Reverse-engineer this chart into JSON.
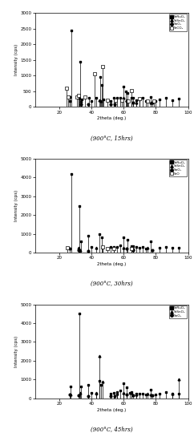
{
  "subplots": [
    {
      "title": "(900°C, 15hrs)",
      "ylabel": "Intensity (cps)",
      "xlabel": "2theta (deg.)",
      "ylim": [
        0,
        3000
      ],
      "yticks": [
        0,
        500,
        1000,
        1500,
        2000,
        2500,
        3000
      ],
      "xlim": [
        5,
        100
      ],
      "xticks": [
        20,
        40,
        60,
        80,
        100
      ],
      "legend": [
        "SrRuO₃",
        "SrSnO₃",
        "SnO₂",
        "SrCO₃"
      ],
      "legend_markers": [
        "filled_square",
        "filled_triangle",
        "filled_circle",
        "open_square"
      ],
      "peaks": {
        "SrRuO3": [
          [
            26.5,
            200
          ],
          [
            27.5,
            2450
          ],
          [
            32,
            300
          ],
          [
            33,
            1450
          ],
          [
            34,
            250
          ],
          [
            38.5,
            300
          ],
          [
            40,
            200
          ],
          [
            43,
            300
          ],
          [
            45.5,
            950
          ],
          [
            46.5,
            700
          ],
          [
            47.5,
            250
          ],
          [
            52,
            200
          ],
          [
            54,
            300
          ],
          [
            56,
            300
          ],
          [
            58,
            300
          ],
          [
            60,
            650
          ],
          [
            61.5,
            500
          ],
          [
            62.5,
            450
          ],
          [
            65,
            280
          ],
          [
            66,
            300
          ],
          [
            68,
            220
          ],
          [
            70,
            230
          ],
          [
            72,
            280
          ],
          [
            74,
            190
          ],
          [
            77,
            320
          ],
          [
            80,
            190
          ],
          [
            82,
            230
          ],
          [
            86,
            280
          ],
          [
            90,
            220
          ],
          [
            94,
            270
          ]
        ],
        "SrSnO3": [
          [
            32.5,
            280
          ],
          [
            33.5,
            180
          ],
          [
            45,
            220
          ],
          [
            46,
            180
          ],
          [
            60,
            300
          ],
          [
            62,
            220
          ],
          [
            68,
            130
          ],
          [
            77,
            130
          ]
        ],
        "SnO2": [
          [
            26.5,
            330
          ],
          [
            33.5,
            90
          ],
          [
            37.9,
            90
          ],
          [
            51.8,
            90
          ],
          [
            54.6,
            90
          ],
          [
            61.8,
            180
          ],
          [
            65.8,
            130
          ],
          [
            78,
            130
          ]
        ],
        "SrCO3": [
          [
            24.5,
            600
          ],
          [
            25.5,
            320
          ],
          [
            31,
            330
          ],
          [
            32,
            380
          ],
          [
            36,
            320
          ],
          [
            42,
            1050
          ],
          [
            47,
            1300
          ],
          [
            50,
            220
          ],
          [
            55,
            220
          ],
          [
            59,
            220
          ],
          [
            63,
            180
          ],
          [
            65,
            530
          ],
          [
            70,
            270
          ],
          [
            75,
            180
          ],
          [
            79,
            180
          ]
        ]
      }
    },
    {
      "title": "(900°C, 30hrs)",
      "ylabel": "Intensity (cps)",
      "xlabel": "2theta (deg.)",
      "ylim": [
        0,
        5000
      ],
      "yticks": [
        0,
        1000,
        2000,
        3000,
        4000,
        5000
      ],
      "xlim": [
        5,
        100
      ],
      "xticks": [
        20,
        40,
        60,
        80,
        100
      ],
      "legend": [
        "SrRuO₃",
        "SrSnO₃",
        "SnO₂",
        "SrO"
      ],
      "legend_markers": [
        "filled_square",
        "filled_triangle",
        "filled_circle",
        "open_square"
      ],
      "peaks": {
        "SrRuO3": [
          [
            27.5,
            4200
          ],
          [
            32.5,
            2500
          ],
          [
            33.5,
            600
          ],
          [
            38,
            900
          ],
          [
            40,
            300
          ],
          [
            45,
            1000
          ],
          [
            46.5,
            800
          ],
          [
            52,
            300
          ],
          [
            54,
            300
          ],
          [
            56,
            300
          ],
          [
            58,
            400
          ],
          [
            60,
            800
          ],
          [
            62.5,
            700
          ],
          [
            65,
            350
          ],
          [
            66,
            350
          ],
          [
            68,
            300
          ],
          [
            70,
            250
          ],
          [
            72,
            300
          ],
          [
            74,
            230
          ],
          [
            77,
            600
          ],
          [
            82,
            240
          ],
          [
            86,
            300
          ],
          [
            90,
            240
          ],
          [
            94,
            240
          ]
        ],
        "SrSnO3": [
          [
            32,
            250
          ],
          [
            33,
            150
          ],
          [
            43,
            250
          ],
          [
            47,
            300
          ],
          [
            60,
            250
          ],
          [
            66,
            200
          ],
          [
            75,
            250
          ]
        ],
        "SnO2": [
          [
            26.5,
            200
          ],
          [
            32,
            150
          ],
          [
            37.9,
            100
          ],
          [
            61.8,
            200
          ],
          [
            65.8,
            150
          ],
          [
            78,
            150
          ]
        ],
        "SrO": [
          [
            25,
            250
          ],
          [
            47,
            300
          ],
          [
            50,
            200
          ],
          [
            54,
            200
          ],
          [
            65,
            200
          ]
        ]
      }
    },
    {
      "title": "(900°C, 45hrs)",
      "ylabel": "Intensity (cps)",
      "xlabel": "2theta (deg.)",
      "ylim": [
        0,
        5000
      ],
      "yticks": [
        0,
        1000,
        2000,
        3000,
        4000,
        5000
      ],
      "xlim": [
        5,
        100
      ],
      "xticks": [
        20,
        40,
        60,
        80,
        100
      ],
      "legend": [
        "SrRuO₃",
        "SrSnO₃",
        "SnO₂"
      ],
      "legend_markers": [
        "filled_square",
        "filled_triangle",
        "filled_circle"
      ],
      "peaks": {
        "SrRuO3": [
          [
            27,
            650
          ],
          [
            32.5,
            4500
          ],
          [
            33.5,
            650
          ],
          [
            38,
            700
          ],
          [
            40,
            300
          ],
          [
            43,
            250
          ],
          [
            45,
            950
          ],
          [
            46,
            700
          ],
          [
            52,
            250
          ],
          [
            54,
            300
          ],
          [
            56,
            350
          ],
          [
            58,
            400
          ],
          [
            60,
            800
          ],
          [
            62,
            600
          ],
          [
            64,
            300
          ],
          [
            65,
            350
          ],
          [
            68,
            250
          ],
          [
            70,
            250
          ],
          [
            72,
            250
          ],
          [
            74,
            200
          ],
          [
            77,
            450
          ],
          [
            80,
            200
          ],
          [
            82,
            250
          ],
          [
            86,
            350
          ],
          [
            90,
            250
          ],
          [
            94,
            250
          ]
        ],
        "SrSnO3": [
          [
            27,
            200
          ],
          [
            33,
            300
          ],
          [
            43,
            300
          ],
          [
            45,
            2250
          ],
          [
            47,
            900
          ],
          [
            56,
            250
          ],
          [
            60,
            300
          ],
          [
            65,
            300
          ],
          [
            68,
            200
          ],
          [
            75,
            250
          ],
          [
            77,
            200
          ],
          [
            90,
            250
          ],
          [
            94,
            1000
          ]
        ],
        "SnO2": [
          [
            26.5,
            200
          ],
          [
            32,
            150
          ],
          [
            37.9,
            100
          ],
          [
            51.8,
            100
          ],
          [
            54.6,
            100
          ],
          [
            61.8,
            200
          ],
          [
            65.8,
            150
          ],
          [
            78,
            150
          ]
        ]
      }
    }
  ],
  "bg_color": "white",
  "line_color": "black"
}
